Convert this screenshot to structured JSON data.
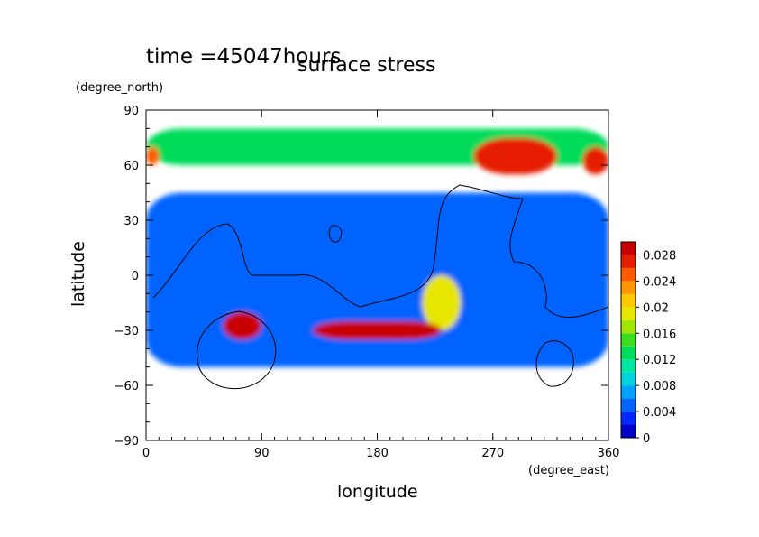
{
  "chart_data": {
    "type": "heatmap",
    "time_label": "time =45047hours",
    "title": "surface stress",
    "xlabel": "longitude",
    "ylabel": "latitude",
    "xunit": "(degree_east)",
    "yunit": "(degree_north)",
    "xlim": [
      0,
      360
    ],
    "ylim": [
      -90,
      90
    ],
    "xticks": [
      0,
      90,
      180,
      270,
      360
    ],
    "yticks": [
      -90,
      -60,
      -30,
      0,
      30,
      60,
      90
    ],
    "colorbar": {
      "min": 0,
      "max": 0.03,
      "ticks": [
        0,
        0.004,
        0.008,
        0.012,
        0.016,
        0.02,
        0.024,
        0.028
      ],
      "tick_labels": [
        "0",
        "0.004",
        "0.008",
        "0.012",
        "0.016",
        "0.02",
        "0.024",
        "0.028"
      ],
      "colors": [
        "#0000c8",
        "#0028ff",
        "#0064ff",
        "#00a0ff",
        "#00d2dc",
        "#00e6a0",
        "#00dc5a",
        "#3cdc1e",
        "#a0e600",
        "#e6e600",
        "#ffc800",
        "#ff9600",
        "#ff5a00",
        "#e61e00",
        "#c80000"
      ]
    },
    "features": [
      {
        "lon": [
          0,
          360
        ],
        "lat": [
          60,
          80
        ],
        "value": 0.012
      },
      {
        "lon": [
          255,
          320
        ],
        "lat": [
          55,
          75
        ],
        "value": 0.026
      },
      {
        "lon": [
          340,
          360
        ],
        "lat": [
          55,
          70
        ],
        "value": 0.026
      },
      {
        "lon": [
          0,
          10
        ],
        "lat": [
          60,
          70
        ],
        "value": 0.024
      },
      {
        "lon": [
          130,
          230
        ],
        "lat": [
          -35,
          -25
        ],
        "value": 0.028
      },
      {
        "lon": [
          60,
          90
        ],
        "lat": [
          -35,
          -20
        ],
        "value": 0.028
      },
      {
        "lon": [
          215,
          245
        ],
        "lat": [
          -30,
          0
        ],
        "value": 0.018
      },
      {
        "lon": [
          0,
          360
        ],
        "lat": [
          -50,
          45
        ],
        "value": 0.004
      }
    ]
  }
}
